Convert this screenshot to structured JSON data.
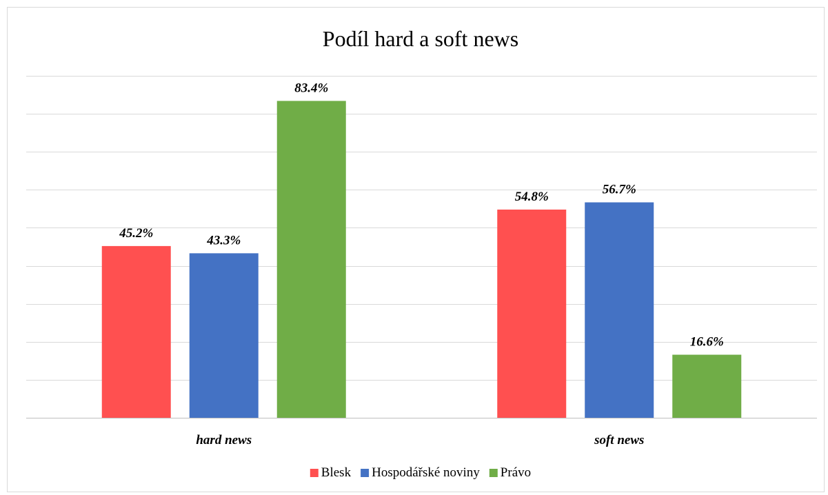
{
  "chart_data": {
    "type": "bar",
    "title": "Podíl hard a soft news",
    "categories": [
      "hard news",
      "soft news"
    ],
    "series": [
      {
        "name": "Blesk",
        "color": "#ff5050",
        "values": [
          45.2,
          54.8
        ],
        "labels": [
          "45.2%",
          "54.8%"
        ]
      },
      {
        "name": "Hospodářské noviny",
        "color": "#4472c4",
        "values": [
          43.3,
          56.7
        ],
        "labels": [
          "43.3%",
          "56.7%"
        ]
      },
      {
        "name": "Právo",
        "color": "#70ad47",
        "values": [
          83.4,
          16.6
        ],
        "labels": [
          "83.4%",
          "16.6%"
        ]
      }
    ],
    "ylim": [
      0,
      90
    ],
    "grid_step": 10,
    "grid": true,
    "legend_position": "bottom",
    "xlabel": "",
    "ylabel": ""
  }
}
